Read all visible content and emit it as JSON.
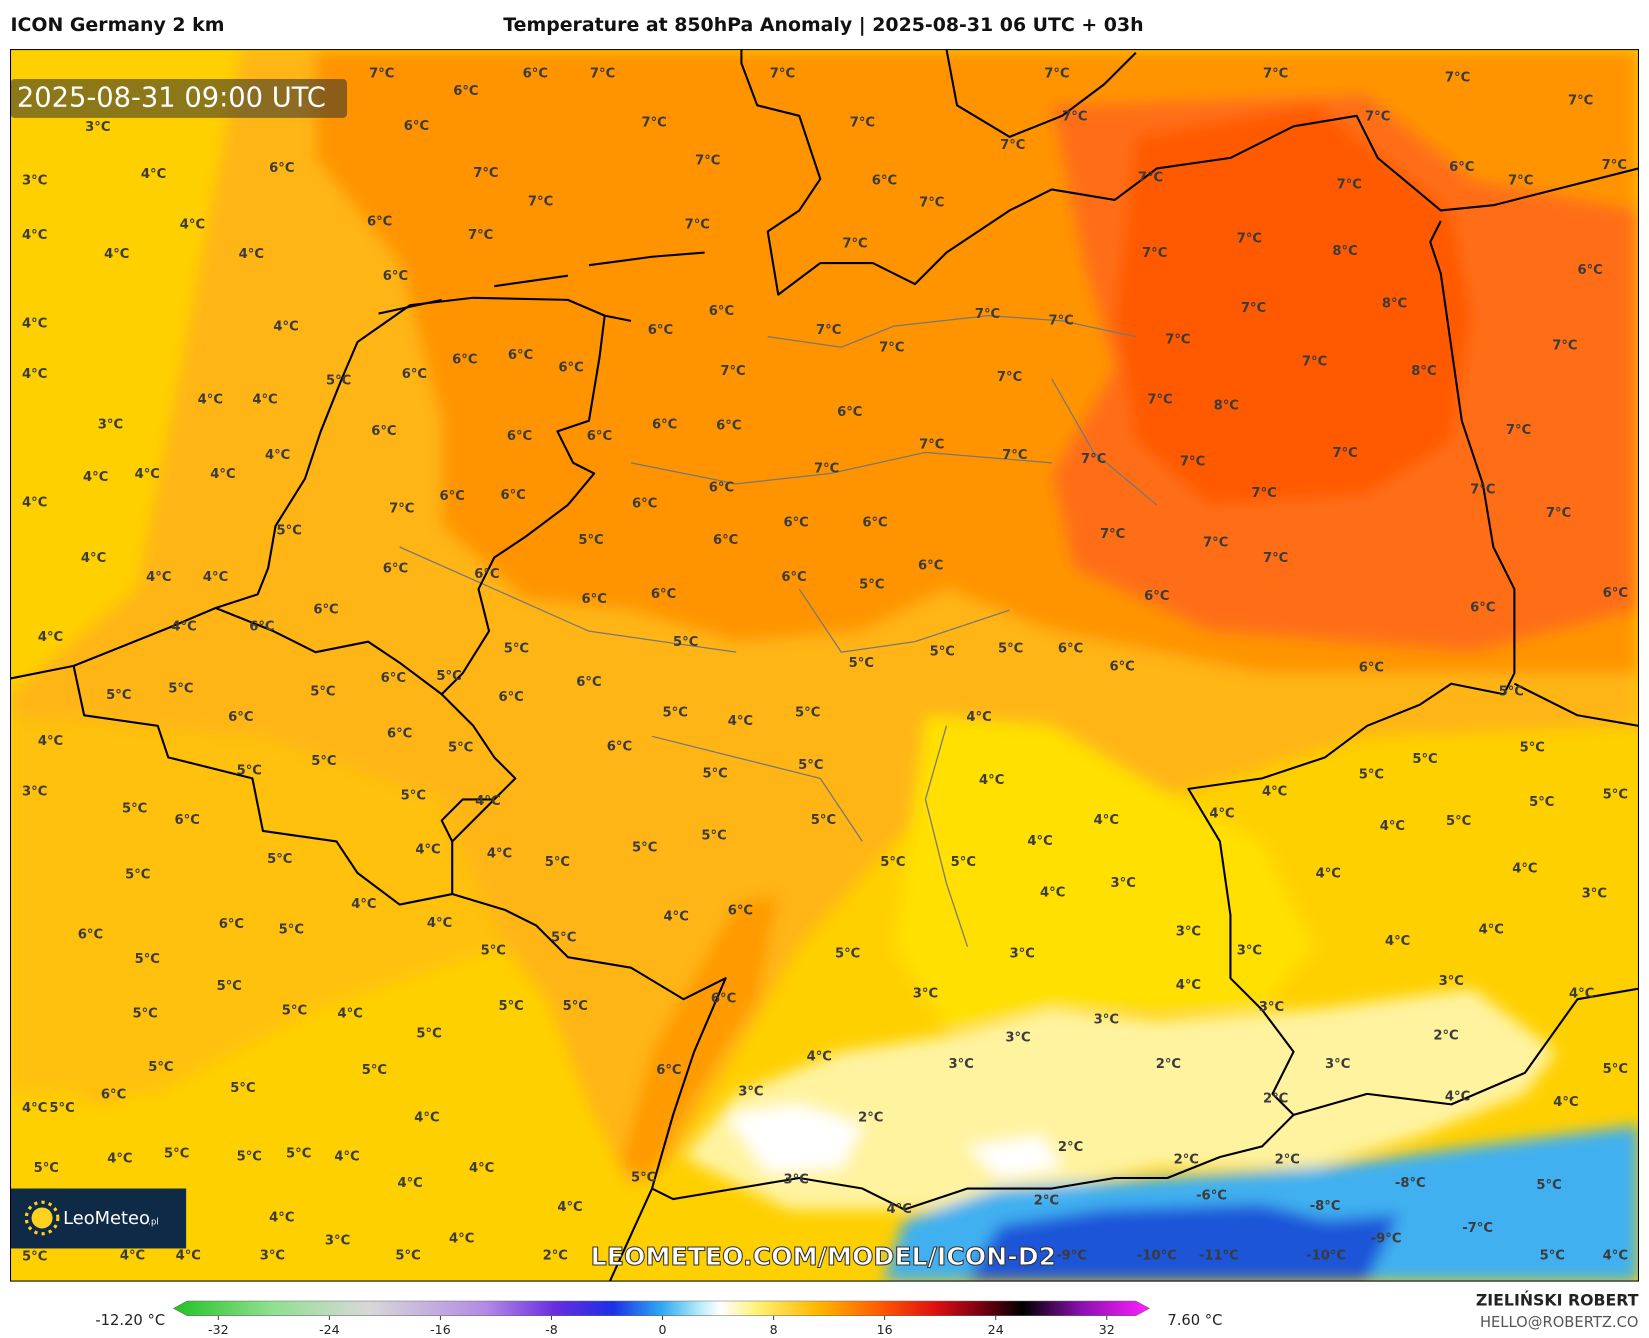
{
  "header": {
    "left": "ICON Germany 2 km",
    "title": "Temperature at 850hPa Anomaly | 2025-08-31 06 UTC + 03h"
  },
  "map": {
    "timestamp": "2025-08-31 09:00 UTC",
    "watermark": "LEOMETEO.COM/MODEL/ICON-D2",
    "logo": "LeoMeteo",
    "logo_suffix": ".pl",
    "labels": [
      "7°C",
      "7°C",
      "7°C",
      "7°C",
      "7°C",
      "7°C",
      "7°C",
      "6°C",
      "6°C",
      "6°C",
      "6°C",
      "4°C",
      "4°C",
      "4°C",
      "4°C",
      "3°C",
      "3°C",
      "4°C",
      "4°C",
      "4°C",
      "3°C",
      "4°C",
      "4°C",
      "4°C",
      "4°C",
      "4°C",
      "3°C",
      "6°C",
      "6°C",
      "7°C",
      "7°C",
      "7°C",
      "7°C",
      "7°C",
      "7°C",
      "7°C",
      "6°C",
      "7°C",
      "7°C",
      "7°C",
      "7°C",
      "7°C",
      "7°C",
      "7°C",
      "8°C",
      "7°C",
      "7°C",
      "6°C",
      "7°C",
      "7°C",
      "6°C",
      "7°C",
      "8°C",
      "8°C",
      "7°C",
      "7°C",
      "7°C",
      "8°C",
      "7°C",
      "7°C",
      "7°C",
      "7°C",
      "7°C",
      "7°C",
      "7°C",
      "7°C",
      "7°C",
      "7°C",
      "6°C",
      "6°C",
      "6°C",
      "7°C",
      "7°C",
      "7°C",
      "7°C",
      "7°C",
      "7°C",
      "7°C",
      "7°C",
      "6°C",
      "7°C",
      "6°C",
      "6°C",
      "6°C",
      "6°C",
      "5°C",
      "6°C",
      "6°C",
      "7°C",
      "6°C",
      "6°C",
      "6°C",
      "6°C",
      "6°C",
      "5°C",
      "6°C",
      "6°C",
      "6°C",
      "6°C",
      "6°C",
      "6°C",
      "6°C",
      "6°C",
      "6°C",
      "5°C",
      "4°C",
      "4°C",
      "4°C",
      "4°C",
      "4°C",
      "4°C",
      "7°C",
      "6°C",
      "6°C",
      "5°C",
      "6°C",
      "6°C",
      "4°C",
      "4°C",
      "6°C",
      "4°C",
      "6°C",
      "5°C",
      "5°C",
      "6°C",
      "5°C",
      "6°C",
      "5°C",
      "5°C",
      "6°C",
      "6°C",
      "5°C",
      "5°C",
      "4°C",
      "5°C",
      "5°C",
      "5°C",
      "5°C",
      "6°C",
      "6°C",
      "6°C",
      "5°C",
      "5°C",
      "5°C",
      "5°C",
      "4°C",
      "4°C",
      "5°C",
      "4°C",
      "5°C",
      "5°C",
      "4°C",
      "4°C",
      "4°C",
      "4°C",
      "5°C",
      "5°C",
      "5°C",
      "5°C",
      "5°C",
      "6°C",
      "6°C",
      "5°C",
      "5°C",
      "5°C",
      "5°C",
      "4°C",
      "5°C",
      "6°C",
      "4°C",
      "4°C",
      "5°C",
      "5°C",
      "5°C",
      "5°C",
      "5°C",
      "4°C",
      "4°C",
      "6°C",
      "4°C",
      "6°C",
      "5°C",
      "6°C",
      "5°C",
      "5°C",
      "5°C",
      "5°C",
      "3°C",
      "3°C",
      "3°C",
      "4°C",
      "3°C",
      "4°C",
      "4°C",
      "4°C",
      "4°C",
      "3°C",
      "3°C",
      "4°C",
      "3°C",
      "3°C",
      "5°C",
      "5°C",
      "5°C",
      "4°C",
      "5°C",
      "5°C",
      "6°C",
      "5°C",
      "3°C",
      "3°C",
      "3°C",
      "2°C",
      "3°C",
      "2°C",
      "4°C",
      "5°C",
      "4°C",
      "4°C",
      "2°C",
      "5°C",
      "5°C",
      "5°C",
      "6°C",
      "4°C",
      "5°C",
      "4°C",
      "6°C",
      "3°C",
      "2°C",
      "2°C",
      "2°C",
      "2°C",
      "4°C",
      "5°C",
      "4°C",
      "5°C",
      "5°C",
      "5°C",
      "4°C",
      "4°C",
      "4°C",
      "5°C",
      "3°C",
      "4°C",
      "4°C",
      "3°C",
      "4°C",
      "5°C",
      "4°C",
      "4°C",
      "3°C",
      "5°C",
      "2°C",
      "2°C",
      "-6°C",
      "-8°C",
      "-8°C",
      "5°C",
      "-7°C",
      "-9°C",
      "-9°C",
      "-10°C",
      "-11°C",
      "-10°C",
      "5°C",
      "4°C",
      "4°C"
    ]
  },
  "colorbar": {
    "min_label": "-12.20 °C",
    "max_label": "7.60 °C",
    "lim": [
      -35,
      35
    ],
    "ticks": [
      -32,
      -24,
      -16,
      -8,
      0,
      8,
      16,
      24,
      32
    ]
  },
  "footer": {
    "author": "ZIELIŃSKI ROBERT",
    "email": "HELLO@ROBERTZ.CO"
  }
}
